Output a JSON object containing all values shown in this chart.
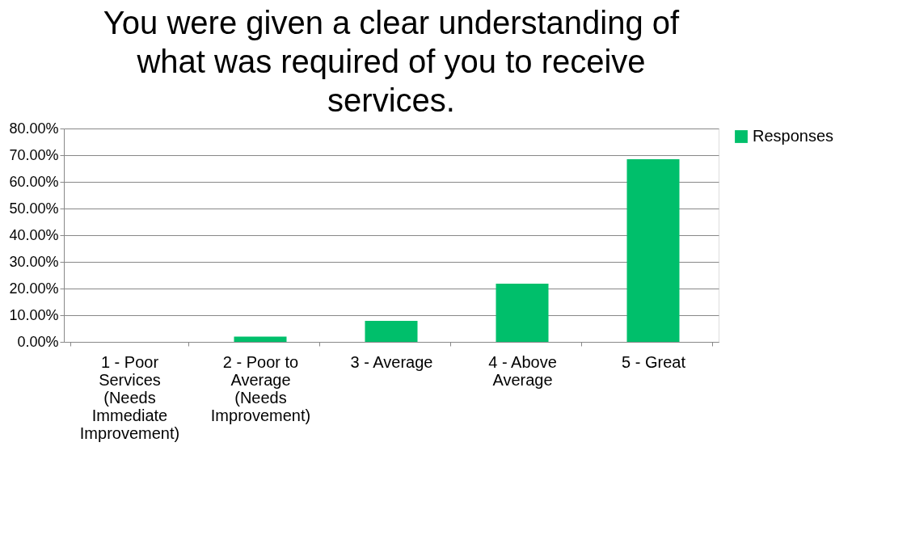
{
  "chart_data": {
    "type": "bar",
    "title": "You were given a clear understanding of what was required of you to receive services.",
    "categories": [
      "1 - Poor Services (Needs Immediate Improvement)",
      "2 - Poor to Average (Needs Improvement)",
      "3 - Average",
      "4 - Above Average",
      "5 - Great"
    ],
    "series": [
      {
        "name": "Responses",
        "color": "#00bf6b",
        "values": [
          0,
          0.02,
          0.079,
          0.218,
          0.685
        ]
      }
    ],
    "ylim": [
      0,
      0.8
    ],
    "yticks": [
      {
        "value": 0,
        "label": "0.00%"
      },
      {
        "value": 0.1,
        "label": "10.00%"
      },
      {
        "value": 0.2,
        "label": "20.00%"
      },
      {
        "value": 0.3,
        "label": "30.00%"
      },
      {
        "value": 0.4,
        "label": "40.00%"
      },
      {
        "value": 0.5,
        "label": "50.00%"
      },
      {
        "value": 0.6,
        "label": "60.00%"
      },
      {
        "value": 0.7,
        "label": "70.00%"
      },
      {
        "value": 0.8,
        "label": "80.00%"
      }
    ],
    "grid": "y",
    "legend": "right"
  }
}
